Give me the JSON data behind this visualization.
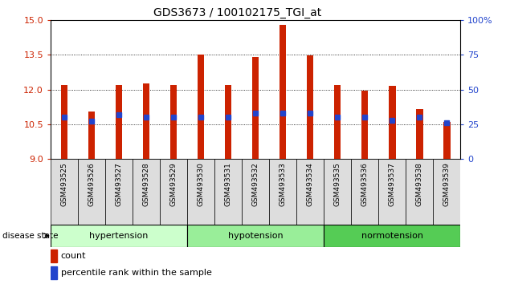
{
  "title": "GDS3673 / 100102175_TGI_at",
  "samples": [
    "GSM493525",
    "GSM493526",
    "GSM493527",
    "GSM493528",
    "GSM493529",
    "GSM493530",
    "GSM493531",
    "GSM493532",
    "GSM493533",
    "GSM493534",
    "GSM493535",
    "GSM493536",
    "GSM493537",
    "GSM493538",
    "GSM493539"
  ],
  "count_values": [
    12.2,
    11.05,
    12.2,
    12.25,
    12.2,
    13.5,
    12.2,
    13.4,
    14.8,
    13.47,
    12.2,
    11.95,
    12.15,
    11.15,
    10.6
  ],
  "percentile_values": [
    30,
    27,
    32,
    30,
    30,
    30,
    30,
    33,
    33,
    33,
    30,
    30,
    28,
    30,
    26
  ],
  "ylim_left": [
    9,
    15
  ],
  "ylim_right": [
    0,
    100
  ],
  "yticks_left": [
    9,
    10.5,
    12,
    13.5,
    15
  ],
  "yticks_right": [
    0,
    25,
    50,
    75,
    100
  ],
  "groups": [
    {
      "label": "hypertension",
      "start": 0,
      "end": 4
    },
    {
      "label": "hypotension",
      "start": 5,
      "end": 9
    },
    {
      "label": "normotension",
      "start": 10,
      "end": 14
    }
  ],
  "group_colors": [
    "#ccffcc",
    "#99ee99",
    "#55cc55"
  ],
  "bar_color": "#cc2200",
  "marker_color": "#2244cc",
  "baseline": 9,
  "bar_width": 0.25,
  "bg_color": "#ffffff",
  "plot_bg": "#ffffff",
  "left_tick_color": "#cc2200",
  "right_tick_color": "#2244cc",
  "legend_count_label": "count",
  "legend_pct_label": "percentile rank within the sample"
}
